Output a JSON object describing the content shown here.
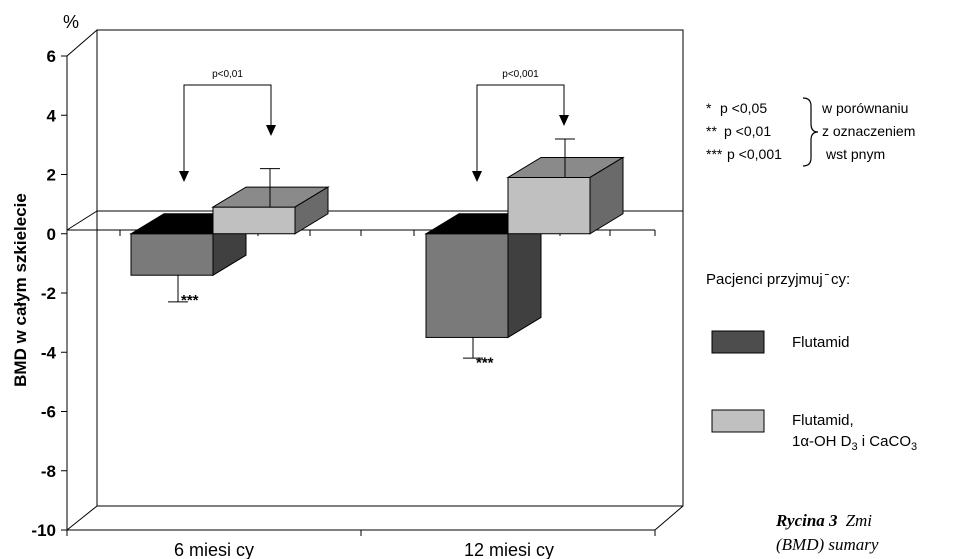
{
  "chart_data": {
    "type": "bar",
    "unit_label": "%",
    "ylabel": "BMD w całym szkielecie",
    "ylim": [
      -10,
      6
    ],
    "yticks": [
      "6",
      "4",
      "2",
      "0",
      "-2",
      "-4",
      "-6",
      "-8",
      "-10"
    ],
    "categories": [
      "6 miesi   cy",
      "12 miesi  cy"
    ],
    "series": [
      {
        "name": "Flutamid",
        "color": "#7a7a7a",
        "values": [
          -1.4,
          -3.5
        ],
        "errors": [
          0.9,
          0.7
        ],
        "annotations": [
          "***",
          "***"
        ]
      },
      {
        "name": "Flutamid,",
        "color": "#c0c0c0",
        "values": [
          0.9,
          1.9
        ],
        "errors": [
          1.3,
          1.3
        ]
      }
    ],
    "comparisons": [
      "p<0,01",
      "p<0,001"
    ],
    "significance_notes": [
      {
        "mark": "*",
        "text": "p <0,05"
      },
      {
        "mark": "**",
        "text": "p <0,01"
      },
      {
        "mark": "***",
        "text": "p <0,001"
      }
    ],
    "note_text": [
      "w porównaniu",
      "z oznaczeniem",
      "wst  pnym"
    ],
    "legend_title": "Pacjenci przyjmuj ̄  cy:",
    "legend_entries": [
      {
        "label": "Flutamid",
        "color": "#4d4d4d"
      },
      {
        "label": "Flutamid,",
        "label2_main": "1α-OH D",
        "label2_sub": "3",
        "label2_rest": " i CaCO",
        "label2_sub2": "3",
        "color": "#c0c0c0"
      }
    ],
    "legend_placement": "right",
    "grid": false
  },
  "caption": {
    "lead": "Rycina 3",
    "rest_line1": "Zmi",
    "rest_line2": "(BMD) sumary"
  }
}
